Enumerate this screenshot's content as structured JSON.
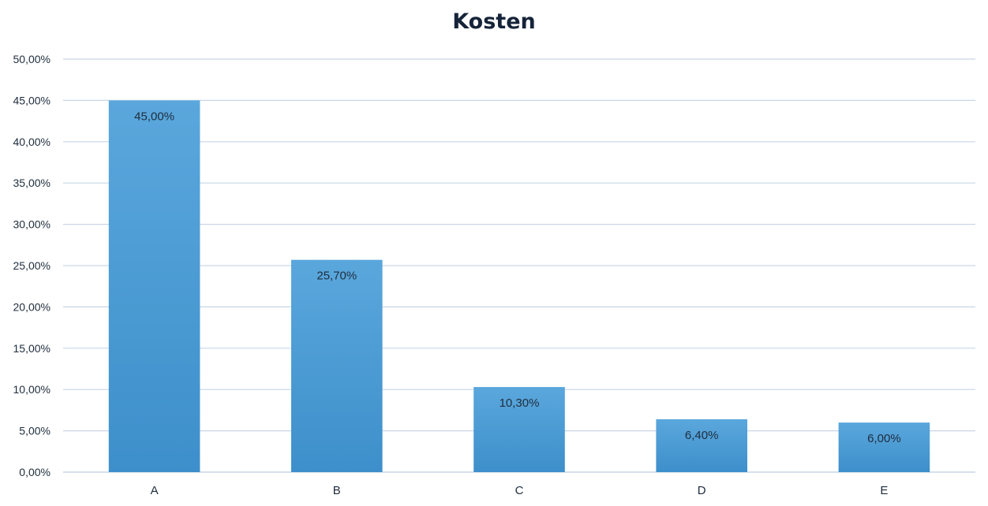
{
  "chart_data": {
    "type": "bar",
    "title": "Kosten",
    "xlabel": "",
    "ylabel": "",
    "categories": [
      "A",
      "B",
      "C",
      "D",
      "E"
    ],
    "values": [
      45.0,
      25.7,
      10.3,
      6.4,
      6.0
    ],
    "data_labels": [
      "45,00%",
      "25,70%",
      "10,30%",
      "6,40%",
      "6,00%"
    ],
    "ylim": [
      0,
      50
    ],
    "y_ticks": [
      0,
      5,
      10,
      15,
      20,
      25,
      30,
      35,
      40,
      45,
      50
    ],
    "y_tick_labels": [
      "0,00%",
      "5,00%",
      "10,00%",
      "15,00%",
      "20,00%",
      "25,00%",
      "30,00%",
      "35,00%",
      "40,00%",
      "45,00%",
      "50,00%"
    ],
    "grid": true,
    "legend": "none",
    "colors": {
      "bar_top": "#5aa7dc",
      "bar_bottom": "#3d8fcb",
      "grid": "#c9d6e6",
      "axis_text": "#1f2d3d",
      "title": "#16243a"
    }
  }
}
